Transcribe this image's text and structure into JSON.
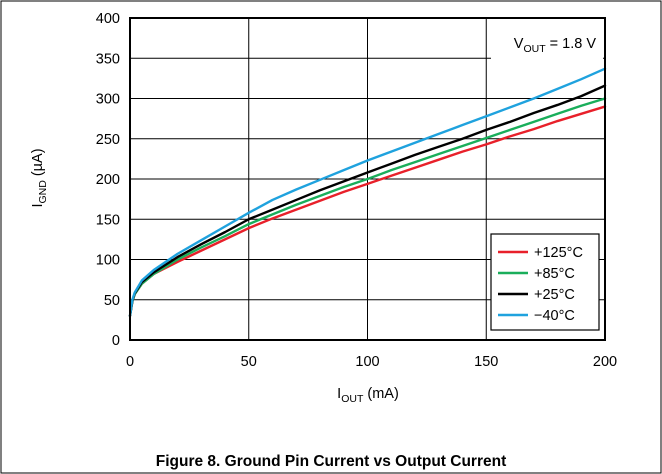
{
  "figure": {
    "caption": "Figure 8. Ground Pin Current vs Output Current"
  },
  "chart_data": {
    "type": "line",
    "xlabel": {
      "main": "I",
      "sub": "OUT",
      "unit": " (mA)"
    },
    "ylabel": {
      "main": "I",
      "sub": "GND",
      "unit": " (µA)"
    },
    "xlim": [
      0,
      200
    ],
    "ylim": [
      0,
      400
    ],
    "xticks": [
      0,
      50,
      100,
      150,
      200
    ],
    "yticks": [
      0,
      50,
      100,
      150,
      200,
      250,
      300,
      350,
      400
    ],
    "grid": true,
    "annotation": {
      "main": "V",
      "sub": "OUT",
      "rest": " = 1.8 V",
      "placement": "top-right"
    },
    "legend_placement": "bottom-right",
    "x": [
      0,
      1,
      2,
      5,
      10,
      20,
      30,
      40,
      50,
      60,
      70,
      80,
      90,
      100,
      110,
      120,
      130,
      140,
      150,
      160,
      170,
      180,
      190,
      200
    ],
    "series": [
      {
        "name": "+125°C",
        "color": "#e8202a",
        "values": [
          30,
          48,
          57,
          70,
          82,
          97,
          111,
          125,
          139,
          151,
          162,
          173,
          184,
          194,
          204,
          214,
          224,
          234,
          243,
          253,
          262,
          272,
          281,
          290
        ]
      },
      {
        "name": "+85°C",
        "color": "#1aae5b",
        "values": [
          30,
          48,
          57,
          70,
          82,
          100,
          115,
          129,
          144,
          156,
          168,
          179,
          190,
          200,
          211,
          221,
          231,
          241,
          251,
          261,
          271,
          281,
          291,
          300
        ]
      },
      {
        "name": "+25°C",
        "color": "#000000",
        "values": [
          30,
          49,
          58,
          72,
          84,
          103,
          119,
          134,
          150,
          162,
          174,
          186,
          197,
          208,
          219,
          230,
          240,
          250,
          261,
          271,
          282,
          292,
          303,
          316
        ]
      },
      {
        "name": "−40°C",
        "color": "#1fa2de",
        "values": [
          30,
          50,
          59,
          74,
          87,
          107,
          124,
          141,
          158,
          174,
          187,
          199,
          211,
          223,
          234,
          245,
          256,
          267,
          278,
          289,
          300,
          312,
          324,
          337
        ]
      }
    ]
  }
}
